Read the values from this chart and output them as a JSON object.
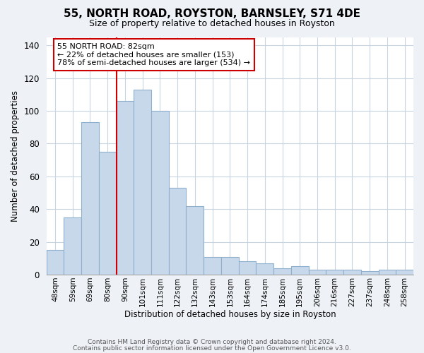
{
  "title": "55, NORTH ROAD, ROYSTON, BARNSLEY, S71 4DE",
  "subtitle": "Size of property relative to detached houses in Royston",
  "xlabel": "Distribution of detached houses by size in Royston",
  "ylabel": "Number of detached properties",
  "bar_labels": [
    "48sqm",
    "59sqm",
    "69sqm",
    "80sqm",
    "90sqm",
    "101sqm",
    "111sqm",
    "122sqm",
    "132sqm",
    "143sqm",
    "153sqm",
    "164sqm",
    "174sqm",
    "185sqm",
    "195sqm",
    "206sqm",
    "216sqm",
    "227sqm",
    "237sqm",
    "248sqm",
    "258sqm"
  ],
  "bar_values": [
    15,
    35,
    93,
    75,
    106,
    113,
    100,
    53,
    42,
    11,
    11,
    8,
    7,
    4,
    5,
    3,
    3,
    3,
    2,
    3,
    3
  ],
  "bar_color": "#c8d8eb",
  "bar_edge_color": "#8fb0cc",
  "vline_x_index": 3.5,
  "vline_color": "#cc0000",
  "annotation_text": "55 NORTH ROAD: 82sqm\n← 22% of detached houses are smaller (153)\n78% of semi-detached houses are larger (534) →",
  "annotation_box_color": "white",
  "annotation_box_edge_color": "#cc0000",
  "ylim": [
    0,
    145
  ],
  "yticks": [
    0,
    20,
    40,
    60,
    80,
    100,
    120,
    140
  ],
  "footer1": "Contains HM Land Registry data © Crown copyright and database right 2024.",
  "footer2": "Contains public sector information licensed under the Open Government Licence v3.0.",
  "background_color": "#eef2f7",
  "plot_background_color": "#ffffff",
  "grid_color": "#c8d4e0"
}
